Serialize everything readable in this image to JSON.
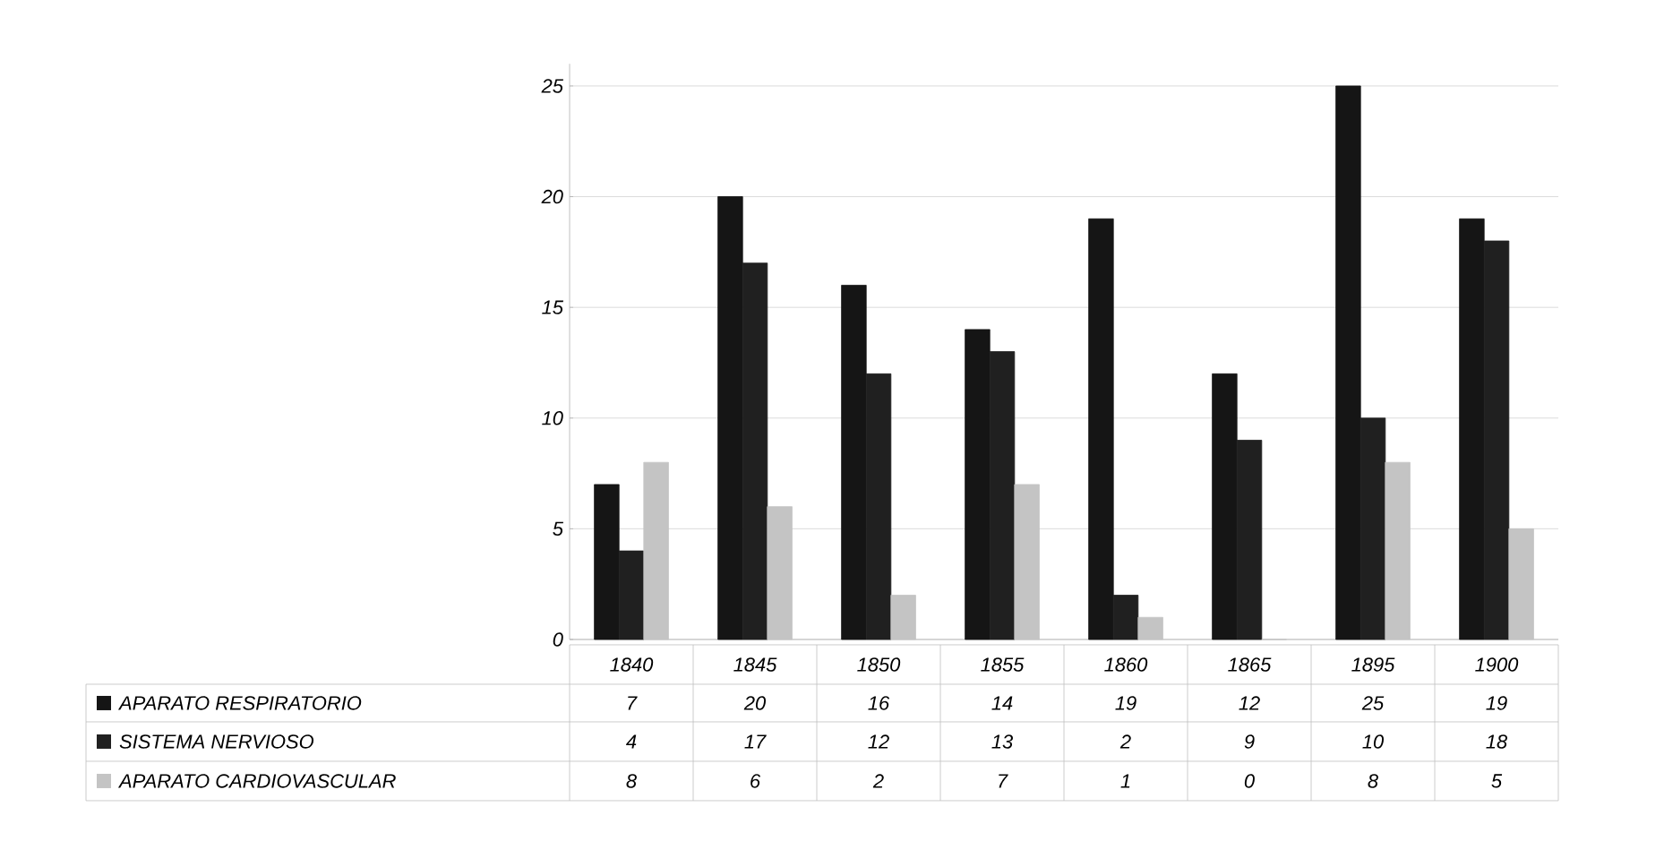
{
  "chart_data": {
    "type": "bar",
    "categories": [
      "1840",
      "1845",
      "1850",
      "1855",
      "1860",
      "1865",
      "1895",
      "1900"
    ],
    "series": [
      {
        "name": "APARATO RESPIRATORIO",
        "color": "#151515",
        "values": [
          7,
          20,
          16,
          14,
          19,
          12,
          25,
          19
        ]
      },
      {
        "name": "SISTEMA NERVIOSO",
        "color": "#202020",
        "values": [
          4,
          17,
          12,
          13,
          2,
          9,
          10,
          18
        ]
      },
      {
        "name": "APARATO CARDIOVASCULAR",
        "color": "#c4c4c4",
        "values": [
          8,
          6,
          2,
          7,
          1,
          0,
          8,
          5
        ]
      }
    ],
    "ylim": [
      0,
      26
    ],
    "yticks": [
      0,
      5,
      10,
      15,
      20,
      25
    ],
    "grid": "y",
    "legend": "bottom left",
    "data_labels": true
  }
}
